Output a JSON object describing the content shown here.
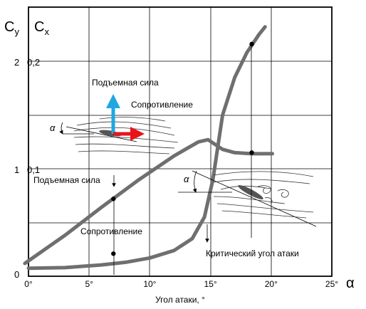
{
  "chart_data": {
    "type": "line",
    "x_unit": "°",
    "xlim": [
      0,
      25
    ],
    "xticks": [
      0,
      5,
      10,
      15,
      20,
      25
    ],
    "yticks_cy": [
      "0",
      "1",
      "2"
    ],
    "yticks_cx": [
      "0,1",
      "0,2"
    ],
    "axis_symbols": {
      "cy_main": "C",
      "cy_sub": "y",
      "cx_main": "C",
      "cx_sub": "x",
      "x": "α"
    },
    "xlabel": "Угол атаки, °",
    "series": [
      {
        "name": "Подъемная сила",
        "x": [
          -0.3,
          3,
          6,
          9,
          12,
          14,
          14.8,
          15.2,
          16,
          17,
          18.4,
          20.1
        ],
        "y": [
          0.12,
          0.38,
          0.64,
          0.89,
          1.12,
          1.25,
          1.27,
          1.24,
          1.18,
          1.15,
          1.14,
          1.14
        ],
        "marker_points": [
          {
            "x": 7,
            "y": 0.72
          },
          {
            "x": 18.4,
            "y": 1.15
          }
        ]
      },
      {
        "name": "Сопротивление",
        "x": [
          0,
          3,
          6,
          8,
          10,
          12,
          13.5,
          14.5,
          15.2,
          16,
          17,
          18,
          19,
          19.5
        ],
        "y": [
          0.0075,
          0.008,
          0.0105,
          0.013,
          0.017,
          0.024,
          0.035,
          0.055,
          0.09,
          0.15,
          0.185,
          0.208,
          0.225,
          0.232
        ],
        "marker_points": [
          {
            "x": 7,
            "y": 0.021
          },
          {
            "x": 18.4,
            "y": 0.216
          }
        ]
      }
    ],
    "annotations": {
      "lift_inset": "Подъемная сила",
      "drag_inset": "Сопротивление",
      "alpha": "α",
      "lift_curve": "Подъемная сила",
      "drag_curve": "Сопротивление",
      "critical_angle": "Критический угол атаки"
    },
    "colors": {
      "curves": "#6f6f6f",
      "lift_arrow": "#1ea7e1",
      "drag_arrow": "#e8141b"
    },
    "grid": true
  }
}
